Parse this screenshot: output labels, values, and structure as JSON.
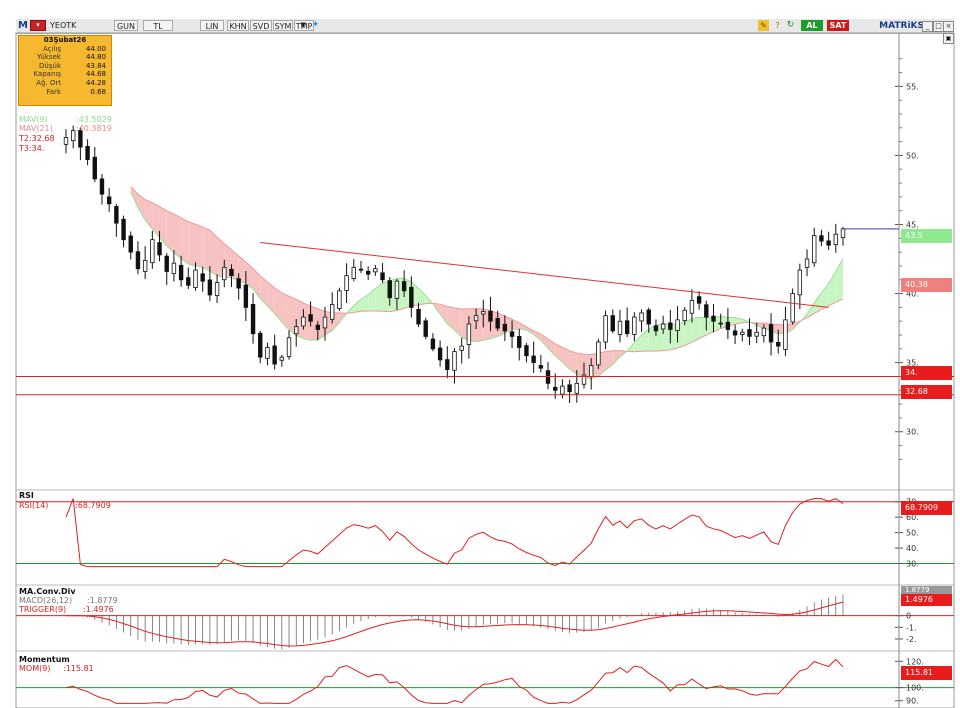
{
  "toolbar": {
    "logo": "M",
    "symbol": "YEOTK",
    "buttons": [
      "GUN",
      "TL",
      "LIN",
      "KHN",
      "SVD",
      "SYM",
      "TMP"
    ],
    "buy_label": "AL",
    "sell_label": "SAT",
    "brand": "MATRiKS"
  },
  "info_box": {
    "date": "03Şubat26",
    "rows": [
      {
        "label": "Açılış",
        "value": "44.00"
      },
      {
        "label": "Yüksek",
        "value": "44.80"
      },
      {
        "label": "Düşük",
        "value": "43.84"
      },
      {
        "label": "Kapanış",
        "value": "44.68"
      },
      {
        "label": "Ağ. Ort",
        "value": "44.28"
      },
      {
        "label": "Fark",
        "value": "0.68"
      }
    ]
  },
  "price_legend": {
    "mav9_label": "MAV(9)",
    "mav9_value": ":43.5029",
    "mav21_label": "MAV(21)",
    "mav21_value": ":40.3819",
    "t2": "T2:32.68",
    "t3": "T3:34."
  },
  "price_axis": {
    "ticks": [
      "55.",
      "50.",
      "45.",
      "40.",
      "35.",
      "30."
    ],
    "labels": [
      {
        "text": "43.5",
        "color": "#8ee88e"
      },
      {
        "text": "40.38",
        "color": "#f08080"
      },
      {
        "text": "34.",
        "color": "#e81c1c"
      },
      {
        "text": "32.68",
        "color": "#e81c1c"
      }
    ]
  },
  "rsi": {
    "title": "RSI",
    "label": "RSI(14)",
    "value": ":68.7909",
    "badge": "68.7909",
    "ticks": [
      "70.",
      "60.",
      "50.",
      "40.",
      "30."
    ]
  },
  "macd": {
    "title": "MA.Conv.Div",
    "macd_label": "MACD(26,12)",
    "macd_value": ":1.8779",
    "trigger_label": "TRIGGER(9)",
    "trigger_value": ":1.4976",
    "badge_top": "1.8779",
    "badge": "1.4976",
    "ticks": [
      "0",
      "-1.",
      "-2."
    ]
  },
  "momentum": {
    "title": "Momentum",
    "label": "MOM(9)",
    "value": ":115.81",
    "badge": "115.81",
    "ticks": [
      "120.",
      "100.",
      "90."
    ]
  },
  "chart_data": {
    "type": "candlestick",
    "y_range": [
      26.0,
      58.5
    ],
    "closes": [
      51.3,
      51.8,
      50.6,
      49.7,
      48.3,
      47.2,
      46.5,
      45.1,
      43.9,
      43.0,
      41.8,
      42.4,
      43.9,
      42.8,
      41.6,
      42.2,
      41.0,
      40.6,
      41.7,
      40.9,
      39.9,
      40.8,
      41.9,
      41.3,
      40.4,
      39.0,
      37.1,
      35.4,
      36.1,
      34.9,
      35.4,
      36.8,
      37.6,
      38.3,
      38.0,
      37.4,
      38.3,
      39.2,
      40.2,
      41.3,
      41.9,
      41.7,
      41.4,
      41.8,
      41.0,
      39.7,
      40.9,
      40.2,
      39.0,
      37.8,
      36.9,
      36.0,
      35.2,
      34.5,
      35.8,
      36.2,
      37.8,
      38.4,
      38.7,
      38.0,
      37.5,
      37.3,
      36.9,
      36.1,
      35.5,
      35.0,
      34.6,
      33.5,
      33.0,
      33.3,
      32.9,
      33.5,
      34.1,
      34.8,
      36.5,
      38.4,
      37.3,
      38.0,
      37.1,
      38.3,
      38.6,
      37.8,
      37.3,
      37.8,
      37.4,
      38.1,
      38.8,
      39.5,
      39.3,
      38.3,
      38.0,
      37.8,
      37.4,
      37.0,
      37.2,
      36.9,
      37.2,
      37.5,
      36.5,
      36.2,
      38.1,
      40.0,
      41.7,
      42.5,
      44.2,
      43.8,
      43.5,
      44.3,
      44.68
    ],
    "mav9": {
      "name": "MAV(9)",
      "last": 43.5029
    },
    "mav21": {
      "name": "MAV(21)",
      "last": 40.3819
    },
    "trendline": {
      "from": [
        27,
        43.7
      ],
      "to": [
        106,
        39.0
      ]
    },
    "horizontal_levels": [
      {
        "name": "T3",
        "value": 34.0
      },
      {
        "name": "T2",
        "value": 32.68
      }
    ],
    "indicators": {
      "rsi14": {
        "last": 68.7909,
        "levels": [
          70,
          30
        ],
        "range": [
          20,
          75
        ]
      },
      "macd": {
        "macd_last": 1.8779,
        "trigger_last": 1.4976,
        "range": [
          -2.6,
          2.2
        ]
      },
      "momentum9": {
        "last": 115.81,
        "baseline": 100,
        "range": [
          86,
          124
        ]
      }
    }
  }
}
